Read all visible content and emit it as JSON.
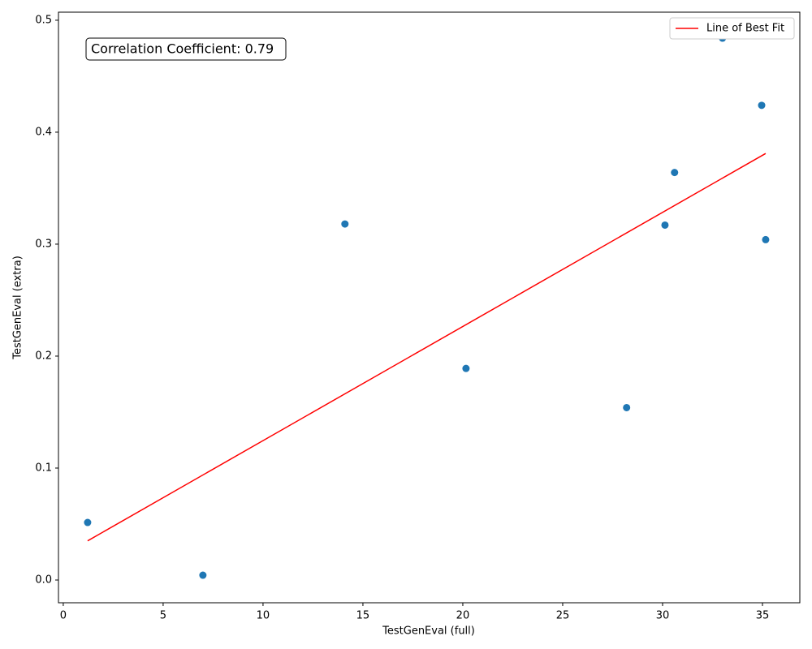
{
  "chart_data": {
    "type": "scatter",
    "xlabel": "TestGenEval (full)",
    "ylabel": "TestGenEval (extra)",
    "annotation": "Correlation Coefficient: 0.79",
    "series": [
      {
        "name": null,
        "color": "#1f77b4",
        "x": [
          1.22,
          6.99,
          14.1,
          20.16,
          28.2,
          30.12,
          30.6,
          33.0,
          34.96,
          35.16
        ],
        "values": [
          0.0514,
          0.0043,
          0.318,
          0.189,
          0.154,
          0.317,
          0.364,
          0.484,
          0.424,
          0.304
        ]
      }
    ],
    "fit_line": {
      "name": "Line of Best Fit",
      "color": "#ff0000",
      "x": [
        1.22,
        35.16
      ],
      "values": [
        0.035,
        0.381
      ]
    },
    "legend": "upper right",
    "xlim": [
      -0.24,
      36.87
    ],
    "ylim": [
      -0.0203,
      0.5072
    ],
    "xticks": [
      0,
      5,
      10,
      15,
      20,
      25,
      30,
      35
    ],
    "yticks": [
      {
        "value": 0,
        "label": "0.0"
      },
      0.1,
      0.2,
      0.3,
      0.4,
      0.5
    ]
  }
}
